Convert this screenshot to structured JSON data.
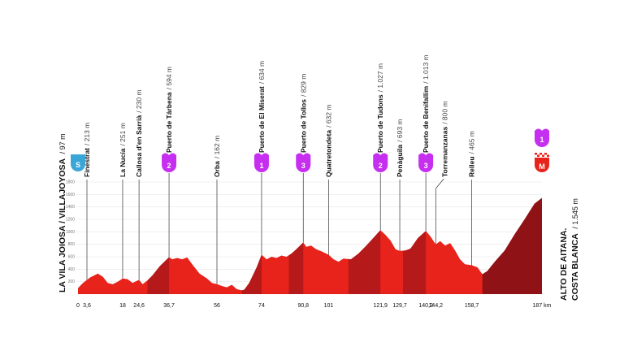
{
  "colors": {
    "profile_main": "#e8231b",
    "profile_dark": "#b5191a",
    "profile_darker": "#8e1216",
    "kom_badge": "#c62ff0",
    "start_badge": "#3aa6d8",
    "finish_badge": "#e8231b",
    "guide_line": "#333333"
  },
  "labels": {
    "start_name": "LA VILA JOIOSA / VILLAJOYOSA",
    "start_alt": "/ 97 m",
    "finish_name_1": "ALTO DE AITANA.",
    "finish_name_2": "COSTA BLANCA",
    "finish_alt": "/ 1.545 m",
    "start_badge": "S",
    "finish_badge": "M",
    "finish_kom_category": "1"
  },
  "chart_data": {
    "type": "area",
    "title": "",
    "xlabel": "",
    "ylabel": "",
    "xlim": [
      0,
      187
    ],
    "ylim": [
      0,
      1800
    ],
    "x_unit": "km",
    "y_unit": "m",
    "y_ticks": [
      200,
      400,
      600,
      800,
      1000,
      1200,
      1400,
      1600,
      1800
    ],
    "x_ticks": [
      {
        "km": 0,
        "label": "0"
      },
      {
        "km": 3.6,
        "label": "3,6"
      },
      {
        "km": 18,
        "label": "18"
      },
      {
        "km": 24.6,
        "label": "24,6"
      },
      {
        "km": 36.7,
        "label": "36,7"
      },
      {
        "km": 56,
        "label": "56"
      },
      {
        "km": 74,
        "label": "74"
      },
      {
        "km": 90.8,
        "label": "90,8"
      },
      {
        "km": 101,
        "label": "101"
      },
      {
        "km": 121.9,
        "label": "121,9"
      },
      {
        "km": 129.7,
        "label": "129,7"
      },
      {
        "km": 140.2,
        "label": "140,2"
      },
      {
        "km": 144.2,
        "label": "144,2"
      },
      {
        "km": 158.7,
        "label": "158,7"
      },
      {
        "km": 187,
        "label": "187 km"
      }
    ],
    "profile": [
      {
        "km": 0,
        "alt": 97
      },
      {
        "km": 2,
        "alt": 180
      },
      {
        "km": 5,
        "alt": 270
      },
      {
        "km": 8,
        "alt": 330
      },
      {
        "km": 10,
        "alt": 280
      },
      {
        "km": 12,
        "alt": 180
      },
      {
        "km": 14,
        "alt": 160
      },
      {
        "km": 16,
        "alt": 200
      },
      {
        "km": 18,
        "alt": 251
      },
      {
        "km": 20,
        "alt": 240
      },
      {
        "km": 22,
        "alt": 180
      },
      {
        "km": 24.6,
        "alt": 230
      },
      {
        "km": 26,
        "alt": 160
      },
      {
        "km": 28,
        "alt": 220
      },
      {
        "km": 30,
        "alt": 300
      },
      {
        "km": 33,
        "alt": 450
      },
      {
        "km": 36.7,
        "alt": 594
      },
      {
        "km": 38,
        "alt": 560
      },
      {
        "km": 40,
        "alt": 580
      },
      {
        "km": 42,
        "alt": 560
      },
      {
        "km": 44,
        "alt": 590
      },
      {
        "km": 46,
        "alt": 480
      },
      {
        "km": 49,
        "alt": 330
      },
      {
        "km": 52,
        "alt": 250
      },
      {
        "km": 54,
        "alt": 180
      },
      {
        "km": 56,
        "alt": 162
      },
      {
        "km": 58,
        "alt": 130
      },
      {
        "km": 60,
        "alt": 110
      },
      {
        "km": 62,
        "alt": 150
      },
      {
        "km": 64,
        "alt": 80
      },
      {
        "km": 66,
        "alt": 60
      },
      {
        "km": 67,
        "alt": 70
      },
      {
        "km": 69,
        "alt": 180
      },
      {
        "km": 72,
        "alt": 430
      },
      {
        "km": 74,
        "alt": 634
      },
      {
        "km": 76,
        "alt": 560
      },
      {
        "km": 78,
        "alt": 600
      },
      {
        "km": 80,
        "alt": 580
      },
      {
        "km": 82,
        "alt": 620
      },
      {
        "km": 84,
        "alt": 600
      },
      {
        "km": 86,
        "alt": 650
      },
      {
        "km": 88,
        "alt": 720
      },
      {
        "km": 90.8,
        "alt": 829
      },
      {
        "km": 92,
        "alt": 760
      },
      {
        "km": 94,
        "alt": 780
      },
      {
        "km": 96,
        "alt": 720
      },
      {
        "km": 98,
        "alt": 690
      },
      {
        "km": 101,
        "alt": 632
      },
      {
        "km": 103,
        "alt": 560
      },
      {
        "km": 105,
        "alt": 520
      },
      {
        "km": 107,
        "alt": 570
      },
      {
        "km": 110,
        "alt": 560
      },
      {
        "km": 113,
        "alt": 650
      },
      {
        "km": 116,
        "alt": 770
      },
      {
        "km": 119,
        "alt": 900
      },
      {
        "km": 121.9,
        "alt": 1027
      },
      {
        "km": 124,
        "alt": 950
      },
      {
        "km": 126,
        "alt": 860
      },
      {
        "km": 128,
        "alt": 720
      },
      {
        "km": 129.7,
        "alt": 693
      },
      {
        "km": 132,
        "alt": 700
      },
      {
        "km": 134,
        "alt": 730
      },
      {
        "km": 137,
        "alt": 900
      },
      {
        "km": 140.2,
        "alt": 1013
      },
      {
        "km": 142,
        "alt": 930
      },
      {
        "km": 144.2,
        "alt": 800
      },
      {
        "km": 146,
        "alt": 850
      },
      {
        "km": 148,
        "alt": 780
      },
      {
        "km": 150,
        "alt": 820
      },
      {
        "km": 152,
        "alt": 700
      },
      {
        "km": 154,
        "alt": 560
      },
      {
        "km": 156,
        "alt": 480
      },
      {
        "km": 158.7,
        "alt": 465
      },
      {
        "km": 161,
        "alt": 430
      },
      {
        "km": 163,
        "alt": 320
      },
      {
        "km": 165,
        "alt": 370
      },
      {
        "km": 168,
        "alt": 520
      },
      {
        "km": 172,
        "alt": 700
      },
      {
        "km": 176,
        "alt": 960
      },
      {
        "km": 180,
        "alt": 1200
      },
      {
        "km": 184,
        "alt": 1450
      },
      {
        "km": 187,
        "alt": 1545
      }
    ],
    "dark_segments": [
      {
        "from": 28,
        "to": 36.7,
        "shade": "dark"
      },
      {
        "from": 66,
        "to": 74,
        "shade": "dark"
      },
      {
        "from": 85,
        "to": 90.8,
        "shade": "dark"
      },
      {
        "from": 109,
        "to": 121.9,
        "shade": "dark"
      },
      {
        "from": 131,
        "to": 140.2,
        "shade": "dark"
      },
      {
        "from": 163,
        "to": 187,
        "shade": "darker"
      }
    ],
    "waypoints": [
      {
        "km": 3.6,
        "name": "Finestrat",
        "alt": "213 m",
        "kom": ""
      },
      {
        "km": 18,
        "name": "La Nucía",
        "alt": "251 m",
        "kom": ""
      },
      {
        "km": 24.6,
        "name": "Callosa d'en Sarrià",
        "alt": "230 m",
        "kom": ""
      },
      {
        "km": 36.7,
        "name": "Puerto de Tárbena",
        "alt": "594 m",
        "kom": "2"
      },
      {
        "km": 56,
        "name": "Orba",
        "alt": "162 m",
        "kom": ""
      },
      {
        "km": 74,
        "name": "Puerto de El Miserat",
        "alt": "634 m",
        "kom": "1"
      },
      {
        "km": 90.8,
        "name": "Puerto de Tollos",
        "alt": "829 m",
        "kom": "3"
      },
      {
        "km": 101,
        "name": "Quatretondeta",
        "alt": "632 m",
        "kom": ""
      },
      {
        "km": 121.9,
        "name": "Puerto de Tudons",
        "alt": "1.027 m",
        "kom": "2"
      },
      {
        "km": 129.7,
        "name": "Penàguila",
        "alt": "693 m",
        "kom": ""
      },
      {
        "km": 140.2,
        "name": "Puerto de Benifallim",
        "alt": "1.013 m",
        "kom": "3"
      },
      {
        "km": 144.2,
        "name": "Torremanzanas",
        "alt": "800 m",
        "kom": ""
      },
      {
        "km": 158.7,
        "name": "Relleu",
        "alt": "465 m",
        "kom": ""
      }
    ]
  }
}
